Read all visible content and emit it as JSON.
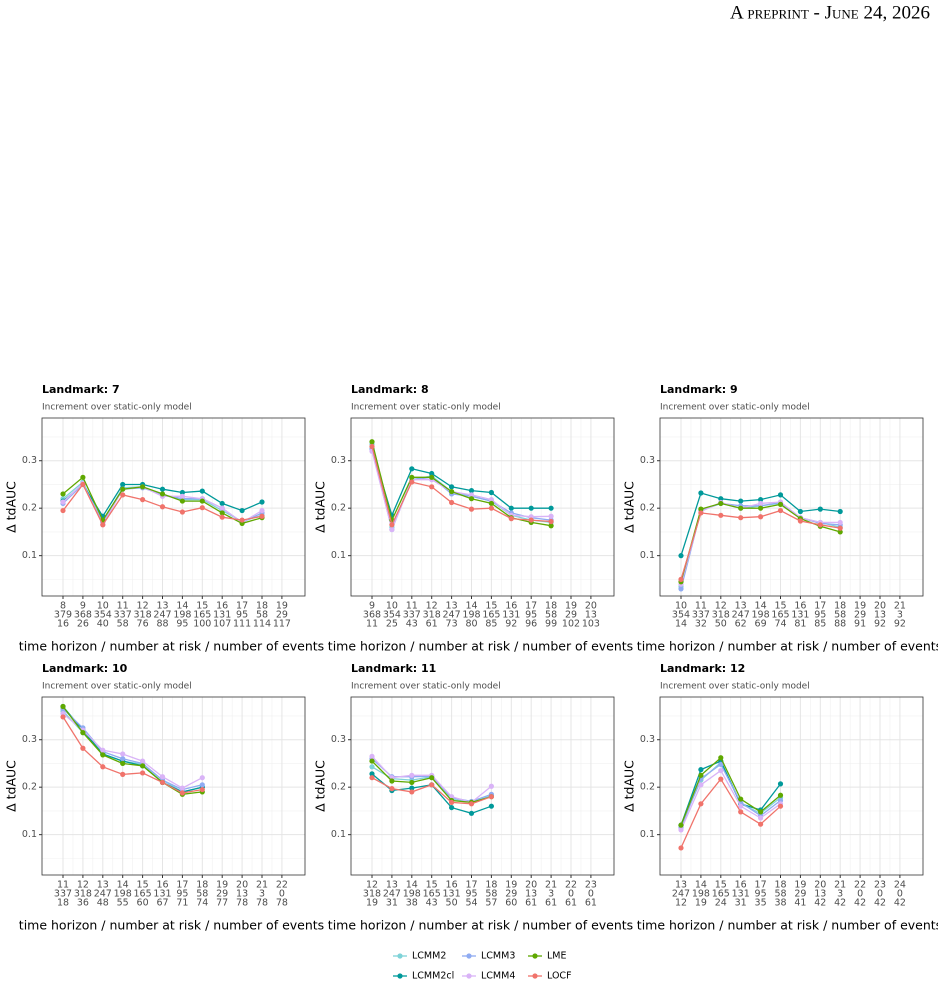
{
  "header": "A preprint - June 24, 2026",
  "chart_data": [
    {
      "type": "line",
      "title": "Landmark: 7",
      "subtitle": "Increment over static-only model",
      "xlabel": "time horizon / number at risk / number of events",
      "ylabel": "Δ tdAUC",
      "categories": [
        "8",
        "9",
        "10",
        "11",
        "12",
        "13",
        "14",
        "15",
        "16",
        "17",
        "18",
        "19"
      ],
      "at_risk": [
        379,
        368,
        354,
        337,
        318,
        247,
        198,
        165,
        131,
        95,
        58,
        29
      ],
      "events": [
        16,
        26,
        40,
        58,
        76,
        88,
        95,
        100,
        107,
        111,
        114,
        117
      ],
      "ylim": [
        0.015,
        0.39
      ],
      "yticks": [
        0.1,
        0.2,
        0.3
      ],
      "grid": true,
      "legend": "bottom",
      "series": [
        {
          "name": "LCMM2",
          "color": "#7fd3d8",
          "values": [
            0.22,
            0.255,
            0.172,
            0.243,
            0.245,
            0.228,
            0.218,
            0.218,
            0.195,
            0.172,
            0.185,
            null
          ]
        },
        {
          "name": "LCMM2cl",
          "color": "#00999a",
          "values": [
            0.215,
            0.25,
            0.183,
            0.25,
            0.25,
            0.24,
            0.233,
            0.236,
            0.21,
            0.195,
            0.213,
            null
          ]
        },
        {
          "name": "LCMM3",
          "color": "#8fabf2",
          "values": [
            0.21,
            0.25,
            0.17,
            0.24,
            0.243,
            0.228,
            0.22,
            0.22,
            0.2,
            0.17,
            0.19,
            null
          ]
        },
        {
          "name": "LCMM4",
          "color": "#d9b3f7",
          "values": [
            0.213,
            0.252,
            0.165,
            0.24,
            0.245,
            0.225,
            0.225,
            0.22,
            0.2,
            0.17,
            0.195,
            null
          ]
        },
        {
          "name": "LME",
          "color": "#5fa800",
          "values": [
            0.23,
            0.265,
            0.175,
            0.24,
            0.245,
            0.23,
            0.215,
            0.215,
            0.19,
            0.168,
            0.18,
            null
          ]
        },
        {
          "name": "LOCF",
          "color": "#f0736b",
          "values": [
            0.195,
            0.25,
            0.165,
            0.228,
            0.218,
            0.203,
            0.192,
            0.201,
            0.181,
            0.175,
            0.183,
            null
          ]
        }
      ]
    },
    {
      "type": "line",
      "title": "Landmark: 8",
      "subtitle": "Increment over static-only model",
      "xlabel": "time horizon / number at risk / number of events",
      "ylabel": "Δ tdAUC",
      "categories": [
        "9",
        "10",
        "11",
        "12",
        "13",
        "14",
        "15",
        "16",
        "17",
        "18",
        "19",
        "20"
      ],
      "at_risk": [
        368,
        354,
        337,
        318,
        247,
        198,
        165,
        131,
        95,
        58,
        29,
        13
      ],
      "events": [
        11,
        25,
        43,
        61,
        73,
        80,
        85,
        92,
        96,
        99,
        102,
        103
      ],
      "ylim": [
        0.015,
        0.39
      ],
      "yticks": [
        0.1,
        0.2,
        0.3
      ],
      "grid": true,
      "series": [
        {
          "name": "LCMM2",
          "color": "#7fd3d8",
          "values": [
            0.335,
            0.16,
            0.26,
            0.268,
            0.235,
            0.225,
            0.215,
            0.185,
            0.175,
            0.17,
            null,
            null
          ]
        },
        {
          "name": "LCMM2cl",
          "color": "#00999a",
          "values": [
            0.325,
            0.185,
            0.283,
            0.273,
            0.245,
            0.237,
            0.233,
            0.2,
            0.2,
            0.2,
            null,
            null
          ]
        },
        {
          "name": "LCMM3",
          "color": "#8fabf2",
          "values": [
            0.325,
            0.155,
            0.26,
            0.265,
            0.23,
            0.225,
            0.215,
            0.19,
            0.18,
            0.175,
            null,
            null
          ]
        },
        {
          "name": "LCMM4",
          "color": "#d9b3f7",
          "values": [
            0.32,
            0.155,
            0.26,
            0.26,
            0.235,
            0.228,
            0.218,
            0.185,
            0.182,
            0.183,
            null,
            null
          ]
        },
        {
          "name": "LME",
          "color": "#5fa800",
          "values": [
            0.34,
            0.175,
            0.265,
            0.265,
            0.235,
            0.22,
            0.21,
            0.18,
            0.17,
            0.163,
            null,
            null
          ]
        },
        {
          "name": "LOCF",
          "color": "#f0736b",
          "values": [
            0.33,
            0.165,
            0.255,
            0.245,
            0.212,
            0.198,
            0.2,
            0.178,
            0.175,
            0.172,
            null,
            null
          ]
        }
      ]
    },
    {
      "type": "line",
      "title": "Landmark: 9",
      "subtitle": "Increment over static-only model",
      "xlabel": "time horizon / number at risk / number of events",
      "ylabel": "Δ tdAUC",
      "categories": [
        "10",
        "11",
        "12",
        "13",
        "14",
        "15",
        "16",
        "17",
        "18",
        "19",
        "20",
        "21"
      ],
      "at_risk": [
        354,
        337,
        318,
        247,
        198,
        165,
        131,
        95,
        58,
        29,
        13,
        3
      ],
      "events": [
        14,
        32,
        50,
        62,
        69,
        74,
        81,
        85,
        88,
        91,
        92,
        92
      ],
      "ylim": [
        0.015,
        0.39
      ],
      "yticks": [
        0.1,
        0.2,
        0.3
      ],
      "grid": true,
      "series": [
        {
          "name": "LCMM2",
          "color": "#7fd3d8",
          "values": [
            0.035,
            0.195,
            0.21,
            0.2,
            0.205,
            0.21,
            0.18,
            0.17,
            0.16,
            null,
            null,
            null
          ]
        },
        {
          "name": "LCMM2cl",
          "color": "#00999a",
          "values": [
            0.1,
            0.232,
            0.22,
            0.215,
            0.218,
            0.228,
            0.193,
            0.198,
            0.193,
            null,
            null,
            null
          ]
        },
        {
          "name": "LCMM3",
          "color": "#8fabf2",
          "values": [
            0.03,
            0.195,
            0.21,
            0.205,
            0.205,
            0.212,
            0.18,
            0.168,
            0.165,
            null,
            null,
            null
          ]
        },
        {
          "name": "LCMM4",
          "color": "#d9b3f7",
          "values": [
            0.04,
            0.193,
            0.212,
            0.2,
            0.21,
            0.213,
            0.18,
            0.17,
            0.17,
            null,
            null,
            null
          ]
        },
        {
          "name": "LME",
          "color": "#5fa800",
          "values": [
            0.045,
            0.198,
            0.21,
            0.2,
            0.2,
            0.208,
            0.178,
            0.162,
            0.15,
            null,
            null,
            null
          ]
        },
        {
          "name": "LOCF",
          "color": "#f0736b",
          "values": [
            0.05,
            0.19,
            0.185,
            0.18,
            0.182,
            0.195,
            0.173,
            0.165,
            0.158,
            null,
            null,
            null
          ]
        }
      ]
    },
    {
      "type": "line",
      "title": "Landmark: 10",
      "subtitle": "Increment over static-only model",
      "xlabel": "time horizon / number at risk / number of events",
      "ylabel": "Δ tdAUC",
      "categories": [
        "11",
        "12",
        "13",
        "14",
        "15",
        "16",
        "17",
        "18",
        "19",
        "20",
        "21",
        "22"
      ],
      "at_risk": [
        337,
        318,
        247,
        198,
        165,
        131,
        95,
        58,
        29,
        13,
        3,
        0
      ],
      "events": [
        18,
        36,
        48,
        55,
        60,
        67,
        71,
        74,
        77,
        78,
        78,
        78
      ],
      "ylim": [
        0.015,
        0.39
      ],
      "yticks": [
        0.1,
        0.2,
        0.3
      ],
      "grid": true,
      "series": [
        {
          "name": "LCMM2",
          "color": "#7fd3d8",
          "values": [
            0.36,
            0.315,
            0.27,
            0.255,
            0.248,
            0.215,
            0.19,
            0.2,
            null,
            null,
            null,
            null
          ]
        },
        {
          "name": "LCMM2cl",
          "color": "#00999a",
          "values": [
            0.37,
            0.32,
            0.27,
            0.255,
            0.245,
            0.21,
            0.19,
            0.2,
            null,
            null,
            null,
            null
          ]
        },
        {
          "name": "LCMM3",
          "color": "#8fabf2",
          "values": [
            0.365,
            0.325,
            0.275,
            0.26,
            0.25,
            0.215,
            0.195,
            0.205,
            null,
            null,
            null,
            null
          ]
        },
        {
          "name": "LCMM4",
          "color": "#d9b3f7",
          "values": [
            0.355,
            0.32,
            0.278,
            0.27,
            0.255,
            0.222,
            0.198,
            0.22,
            null,
            null,
            null,
            null
          ]
        },
        {
          "name": "LME",
          "color": "#5fa800",
          "values": [
            0.37,
            0.315,
            0.268,
            0.25,
            0.245,
            0.21,
            0.185,
            0.19,
            null,
            null,
            null,
            null
          ]
        },
        {
          "name": "LOCF",
          "color": "#f0736b",
          "values": [
            0.348,
            0.282,
            0.243,
            0.227,
            0.23,
            0.21,
            0.188,
            0.195,
            null,
            null,
            null,
            null
          ]
        }
      ]
    },
    {
      "type": "line",
      "title": "Landmark: 11",
      "subtitle": "Increment over static-only model",
      "xlabel": "time horizon / number at risk / number of events",
      "ylabel": "Δ tdAUC",
      "categories": [
        "12",
        "13",
        "14",
        "15",
        "16",
        "17",
        "18",
        "19",
        "20",
        "21",
        "22",
        "23"
      ],
      "at_risk": [
        318,
        247,
        198,
        165,
        131,
        95,
        58,
        29,
        13,
        3,
        0,
        0
      ],
      "events": [
        19,
        31,
        38,
        43,
        50,
        54,
        57,
        60,
        61,
        61,
        61,
        61
      ],
      "ylim": [
        0.015,
        0.39
      ],
      "yticks": [
        0.1,
        0.2,
        0.3
      ],
      "grid": true,
      "series": [
        {
          "name": "LCMM2",
          "color": "#7fd3d8",
          "values": [
            0.243,
            0.218,
            0.215,
            0.222,
            0.175,
            0.168,
            0.182,
            null,
            null,
            null,
            null,
            null
          ]
        },
        {
          "name": "LCMM2cl",
          "color": "#00999a",
          "values": [
            0.228,
            0.193,
            0.198,
            0.205,
            0.157,
            0.145,
            0.16,
            null,
            null,
            null,
            null,
            null
          ]
        },
        {
          "name": "LCMM3",
          "color": "#8fabf2",
          "values": [
            0.26,
            0.222,
            0.222,
            0.223,
            0.178,
            0.17,
            0.185,
            null,
            null,
            null,
            null,
            null
          ]
        },
        {
          "name": "LCMM4",
          "color": "#d9b3f7",
          "values": [
            0.265,
            0.22,
            0.225,
            0.225,
            0.18,
            0.168,
            0.202,
            null,
            null,
            null,
            null,
            null
          ]
        },
        {
          "name": "LME",
          "color": "#5fa800",
          "values": [
            0.255,
            0.213,
            0.21,
            0.22,
            0.172,
            0.168,
            0.18,
            null,
            null,
            null,
            null,
            null
          ]
        },
        {
          "name": "LOCF",
          "color": "#f0736b",
          "values": [
            0.22,
            0.197,
            0.19,
            0.205,
            0.168,
            0.165,
            0.18,
            null,
            null,
            null,
            null,
            null
          ]
        }
      ]
    },
    {
      "type": "line",
      "title": "Landmark: 12",
      "subtitle": "Increment over static-only model",
      "xlabel": "time horizon / number at risk / number of events",
      "ylabel": "Δ tdAUC",
      "categories": [
        "13",
        "14",
        "15",
        "16",
        "17",
        "18",
        "19",
        "20",
        "21",
        "22",
        "23",
        "24"
      ],
      "at_risk": [
        247,
        198,
        165,
        131,
        95,
        58,
        29,
        13,
        3,
        0,
        0,
        0
      ],
      "events": [
        12,
        19,
        24,
        31,
        35,
        38,
        41,
        42,
        42,
        42,
        42,
        42
      ],
      "ylim": [
        0.015,
        0.39
      ],
      "yticks": [
        0.1,
        0.2,
        0.3
      ],
      "grid": true,
      "series": [
        {
          "name": "LCMM2",
          "color": "#7fd3d8",
          "values": [
            0.12,
            0.215,
            0.252,
            0.165,
            0.145,
            0.178,
            null,
            null,
            null,
            null,
            null,
            null
          ]
        },
        {
          "name": "LCMM2cl",
          "color": "#00999a",
          "values": [
            0.12,
            0.237,
            0.255,
            0.165,
            0.152,
            0.207,
            null,
            null,
            null,
            null,
            null,
            null
          ]
        },
        {
          "name": "LCMM3",
          "color": "#8fabf2",
          "values": [
            0.115,
            0.218,
            0.248,
            0.168,
            0.14,
            0.172,
            null,
            null,
            null,
            null,
            null,
            null
          ]
        },
        {
          "name": "LCMM4",
          "color": "#d9b3f7",
          "values": [
            0.11,
            0.205,
            0.235,
            0.16,
            0.135,
            0.165,
            null,
            null,
            null,
            null,
            null,
            null
          ]
        },
        {
          "name": "LME",
          "color": "#5fa800",
          "values": [
            0.12,
            0.225,
            0.262,
            0.175,
            0.148,
            0.183,
            null,
            null,
            null,
            null,
            null,
            null
          ]
        },
        {
          "name": "LOCF",
          "color": "#f0736b",
          "values": [
            0.072,
            0.165,
            0.217,
            0.148,
            0.122,
            0.16,
            null,
            null,
            null,
            null,
            null,
            null
          ]
        }
      ]
    }
  ]
}
